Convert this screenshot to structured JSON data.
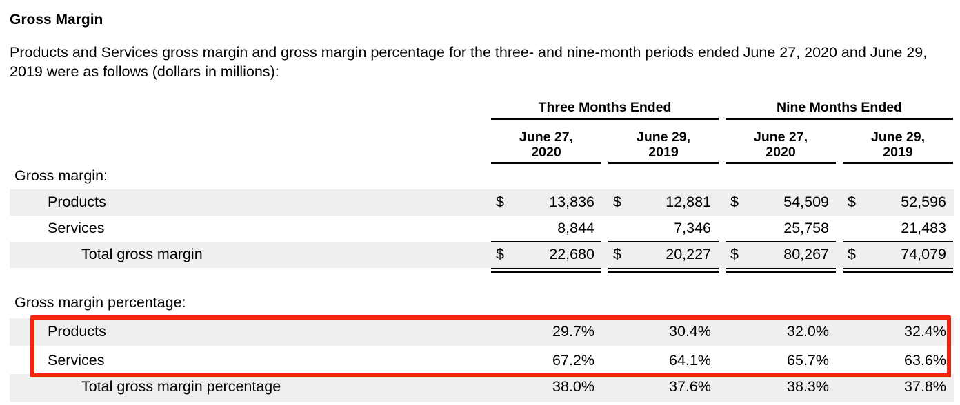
{
  "heading": "Gross Margin",
  "intro": "Products and Services gross margin and gross margin percentage for the three- and nine-month periods ended June 27, 2020 and June 29, 2019 were as follows (dollars in millions):",
  "groups": {
    "three": "Three Months Ended",
    "nine": "Nine Months Ended"
  },
  "columns": [
    {
      "l1": "June 27,",
      "l2": "2020"
    },
    {
      "l1": "June 29,",
      "l2": "2019"
    },
    {
      "l1": "June 27,",
      "l2": "2020"
    },
    {
      "l1": "June 29,",
      "l2": "2019"
    }
  ],
  "currency": "$",
  "gross_margin": {
    "label": "Gross margin:",
    "products": {
      "label": "Products",
      "values": [
        "13,836",
        "12,881",
        "54,509",
        "52,596"
      ]
    },
    "services": {
      "label": "Services",
      "values": [
        "8,844",
        "7,346",
        "25,758",
        "21,483"
      ]
    },
    "total": {
      "label": "Total gross margin",
      "values": [
        "22,680",
        "20,227",
        "80,267",
        "74,079"
      ]
    }
  },
  "gross_margin_pct": {
    "label": "Gross margin percentage:",
    "products": {
      "label": "Products",
      "values": [
        "29.7%",
        "30.4%",
        "32.0%",
        "32.4%"
      ]
    },
    "services": {
      "label": "Services",
      "values": [
        "67.2%",
        "64.1%",
        "65.7%",
        "63.6%"
      ]
    },
    "total": {
      "label": "Total gross margin percentage",
      "values": [
        "38.0%",
        "37.6%",
        "38.3%",
        "37.8%"
      ]
    }
  },
  "highlight_color": "#f0260f"
}
